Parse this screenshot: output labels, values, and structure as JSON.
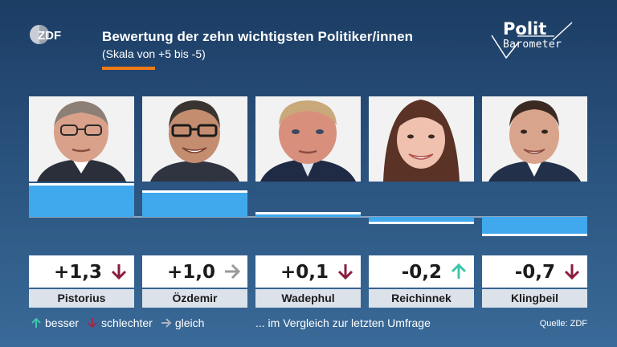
{
  "header": {
    "logo_text": "ZDF",
    "title": "Bewertung der zehn wichtigsten Politiker/innen",
    "subtitle": "(Skala von +5 bis -5)",
    "brand_line1": "Polit",
    "brand_line2": "Barometer"
  },
  "colors": {
    "bar": "#40a9ee",
    "zero_line": "#8ea4bd",
    "up_arrow": "#3ec7aa",
    "down_arrow": "#8a1d3e",
    "same_arrow": "#9a9a9a",
    "accent": "#f07b18"
  },
  "chart_data": {
    "type": "bar",
    "title": "Bewertung der zehn wichtigsten Politiker/innen",
    "subtitle": "(Skala von +5 bis -5)",
    "categories": [
      "Pistorius",
      "Özdemir",
      "Wadephul",
      "Reichinnek",
      "Klingbeil"
    ],
    "values": [
      1.3,
      1.0,
      0.1,
      -0.2,
      -0.7
    ],
    "value_labels": [
      "+1,3",
      "+1,0",
      "+0,1",
      "-0,2",
      "-0,7"
    ],
    "trend": [
      "down",
      "same",
      "down",
      "up",
      "down"
    ],
    "ylim": [
      -5,
      5
    ]
  },
  "legend": {
    "up": "besser",
    "down": "schlechter",
    "same": "gleich",
    "note": "... im Vergleich zur letzten Umfrage"
  },
  "source": "Quelle: ZDF"
}
